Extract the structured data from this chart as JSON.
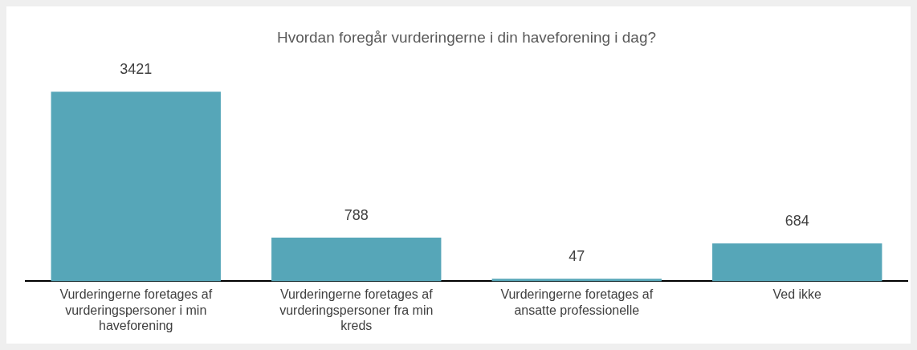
{
  "chart_data": {
    "type": "bar",
    "title": "Hvordan foregår vurderingerne i din haveforening i dag?",
    "categories": [
      "Vurderingerne foretages af vurderingspersoner i min haveforening",
      "Vurderingerne foretages af vurderingspersoner fra min kreds",
      "Vurderingerne foretages af ansatte professionelle",
      "Ved ikke"
    ],
    "values": [
      3421,
      788,
      47,
      684
    ],
    "color": "#56a6b8",
    "data_labels": true,
    "grid": false,
    "legend": false
  }
}
